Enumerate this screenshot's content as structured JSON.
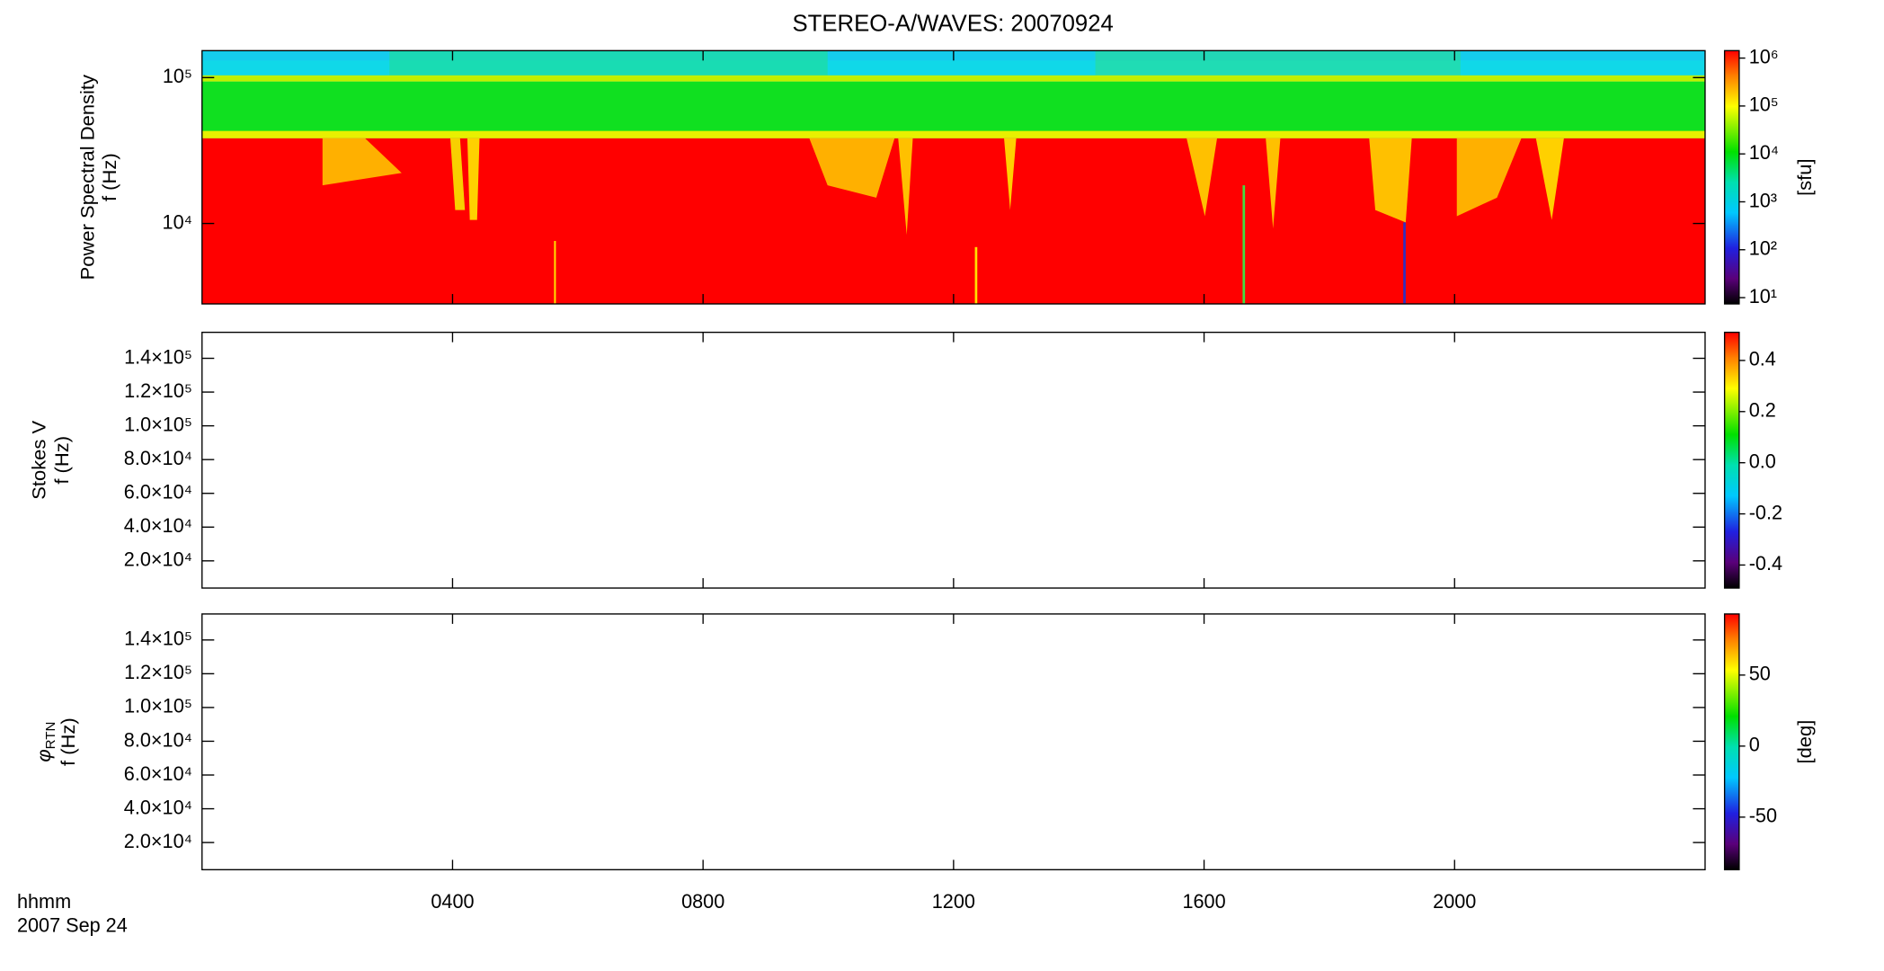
{
  "title": "STEREO-A/WAVES: 20070924",
  "chart_data": [
    {
      "type": "spectrogram",
      "ylabel": "Power Spectral Density",
      "ylabel_unit": "f (Hz)",
      "ylog": true,
      "ylim": [
        2810,
        153000
      ],
      "yticks": [
        {
          "value": 10000,
          "label": "10⁴"
        },
        {
          "value": 100000,
          "label": "10⁵"
        }
      ],
      "colorbar": {
        "log": true,
        "lim": [
          7.4,
          1430000
        ],
        "label": "[sfu]",
        "ticks": [
          {
            "value": 10,
            "label": "10¹"
          },
          {
            "value": 100,
            "label": "10²"
          },
          {
            "value": 1000,
            "label": "10³"
          },
          {
            "value": 10000,
            "label": "10⁴"
          },
          {
            "value": 100000,
            "label": "10⁵"
          },
          {
            "value": 1000000,
            "label": "10⁶"
          }
        ]
      }
    },
    {
      "type": "spectrogram",
      "ylabel": "Stokes V",
      "ylabel_unit": "f (Hz)",
      "ylog": false,
      "ylim": [
        3900,
        155400
      ],
      "yticks": [
        {
          "value": 20000,
          "label": "2.0×10⁴"
        },
        {
          "value": 40000,
          "label": "4.0×10⁴"
        },
        {
          "value": 60000,
          "label": "6.0×10⁴"
        },
        {
          "value": 80000,
          "label": "8.0×10⁴"
        },
        {
          "value": 100000,
          "label": "1.0×10⁵"
        },
        {
          "value": 120000,
          "label": "1.2×10⁵"
        },
        {
          "value": 140000,
          "label": "1.4×10⁵"
        }
      ],
      "colorbar": {
        "log": false,
        "lim": [
          -0.49,
          0.51
        ],
        "ticks": [
          -0.4,
          -0.2,
          {
            "value": 0,
            "label": "0.0"
          },
          0.2,
          0.4
        ]
      }
    },
    {
      "type": "spectrogram",
      "ylabel_symbol": "φ",
      "ylabel_sub": "RTN",
      "ylabel_unit": "f (Hz)",
      "ylog": false,
      "ylim": [
        3900,
        155400
      ],
      "yticks": [
        {
          "value": 20000,
          "label": "2.0×10⁴"
        },
        {
          "value": 40000,
          "label": "4.0×10⁴"
        },
        {
          "value": 60000,
          "label": "6.0×10⁴"
        },
        {
          "value": 80000,
          "label": "8.0×10⁴"
        },
        {
          "value": 100000,
          "label": "1.0×10⁵"
        },
        {
          "value": 120000,
          "label": "1.2×10⁵"
        },
        {
          "value": 140000,
          "label": "1.4×10⁵"
        }
      ],
      "colorbar": {
        "log": false,
        "lim": [
          -87,
          93
        ],
        "label": "[deg]",
        "ticks": [
          -50,
          0,
          50
        ]
      },
      "xlabel": "hhmm",
      "xdate": "2007 Sep 24",
      "xlim": [
        0,
        24
      ],
      "xticks": [
        {
          "value": 4,
          "label": "0400"
        },
        {
          "value": 8,
          "label": "0800"
        },
        {
          "value": 12,
          "label": "1200"
        },
        {
          "value": 16,
          "label": "1600"
        },
        {
          "value": 20,
          "label": "2000"
        }
      ]
    }
  ]
}
